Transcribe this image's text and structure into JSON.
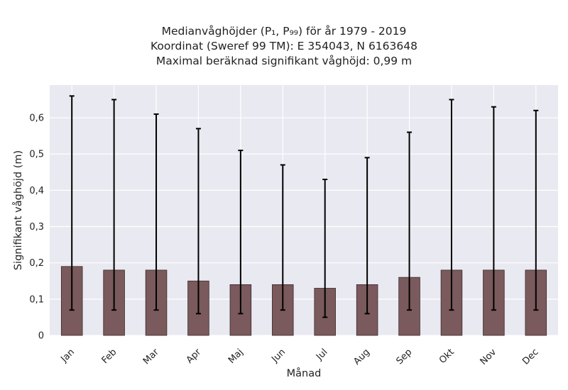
{
  "chart_data": {
    "type": "bar",
    "title_lines": [
      "Medianvåghöjder (P₁, P₉₉) för år 1979 - 2019",
      "Koordinat (Sweref 99 TM): E 354043, N 6163648",
      "Maximal beräknad signifikant våghöjd: 0,99 m"
    ],
    "xlabel": "Månad",
    "ylabel": "Signifikant våghöjd (m)",
    "categories": [
      "Jan",
      "Feb",
      "Mar",
      "Apr",
      "Maj",
      "Jun",
      "Jul",
      "Aug",
      "Sep",
      "Okt",
      "Nov",
      "Dec"
    ],
    "values": [
      0.19,
      0.18,
      0.18,
      0.15,
      0.14,
      0.14,
      0.13,
      0.14,
      0.16,
      0.18,
      0.18,
      0.18
    ],
    "error_low": [
      0.07,
      0.07,
      0.07,
      0.06,
      0.06,
      0.07,
      0.05,
      0.06,
      0.07,
      0.07,
      0.07,
      0.07
    ],
    "error_high": [
      0.66,
      0.65,
      0.61,
      0.57,
      0.51,
      0.47,
      0.43,
      0.49,
      0.56,
      0.65,
      0.63,
      0.62
    ],
    "ylim": [
      0,
      0.69
    ],
    "yticks": [
      0,
      0.1,
      0.2,
      0.3,
      0.4,
      0.5,
      0.6
    ],
    "ytick_labels": [
      "0",
      "0,1",
      "0,2",
      "0,3",
      "0,4",
      "0,5",
      "0,6"
    ],
    "grid": true,
    "colors": {
      "bar_fill": "#7a5a5c",
      "bar_edge": "#3a2a2b",
      "error_bar": "#000000",
      "plot_background": "#e9e9f1",
      "grid": "#ffffff"
    }
  }
}
